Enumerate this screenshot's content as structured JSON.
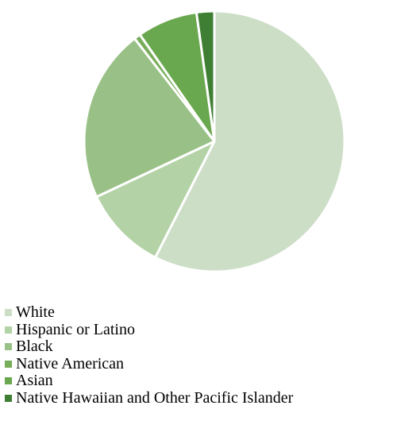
{
  "chart_data": {
    "type": "pie",
    "start": "12 o'clock",
    "direction": "clockwise",
    "slices": [
      {
        "label": "White",
        "value": 57.5,
        "color": "#cddec7"
      },
      {
        "label": "Hispanic or Latino",
        "value": 10.5,
        "color": "#b3d2a6"
      },
      {
        "label": "Black",
        "value": 21.5,
        "color": "#99c187"
      },
      {
        "label": "Native American",
        "value": 0.8,
        "color": "#78ad59"
      },
      {
        "label": "Asian",
        "value": 7.5,
        "color": "#6aa84f"
      },
      {
        "label": "Native Hawaiian and Other Pacific Islander",
        "value": 2.2,
        "color": "#3f7f33"
      }
    ],
    "legend": "bottom-left",
    "slice_borders": "#ffffff"
  }
}
